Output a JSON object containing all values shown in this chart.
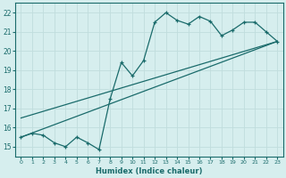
{
  "xlabel": "Humidex (Indice chaleur)",
  "bg_color": "#d6eeee",
  "line_color": "#1a6b6b",
  "grid_color": "#c0dddd",
  "xlim": [
    -0.5,
    23.5
  ],
  "ylim": [
    14.5,
    22.5
  ],
  "xticks": [
    0,
    1,
    2,
    3,
    4,
    5,
    6,
    7,
    8,
    9,
    10,
    11,
    12,
    13,
    14,
    15,
    16,
    17,
    18,
    19,
    20,
    21,
    22,
    23
  ],
  "yticks": [
    15,
    16,
    17,
    18,
    19,
    20,
    21,
    22
  ],
  "curve_x": [
    0,
    1,
    2,
    3,
    4,
    5,
    6,
    7,
    8,
    9,
    10,
    11,
    12,
    13,
    14,
    15,
    16,
    17,
    18,
    19,
    20,
    21,
    22,
    23
  ],
  "curve_y": [
    15.5,
    15.7,
    15.6,
    15.2,
    15.0,
    15.5,
    15.2,
    14.85,
    17.5,
    19.4,
    18.7,
    19.5,
    21.5,
    22.0,
    21.6,
    21.4,
    21.8,
    21.55,
    20.8,
    21.1,
    21.5,
    21.5,
    21.0,
    20.5
  ],
  "line1_x": [
    0,
    23
  ],
  "line1_y": [
    15.5,
    20.5
  ],
  "line2_x": [
    0,
    23
  ],
  "line2_y": [
    16.5,
    20.5
  ]
}
